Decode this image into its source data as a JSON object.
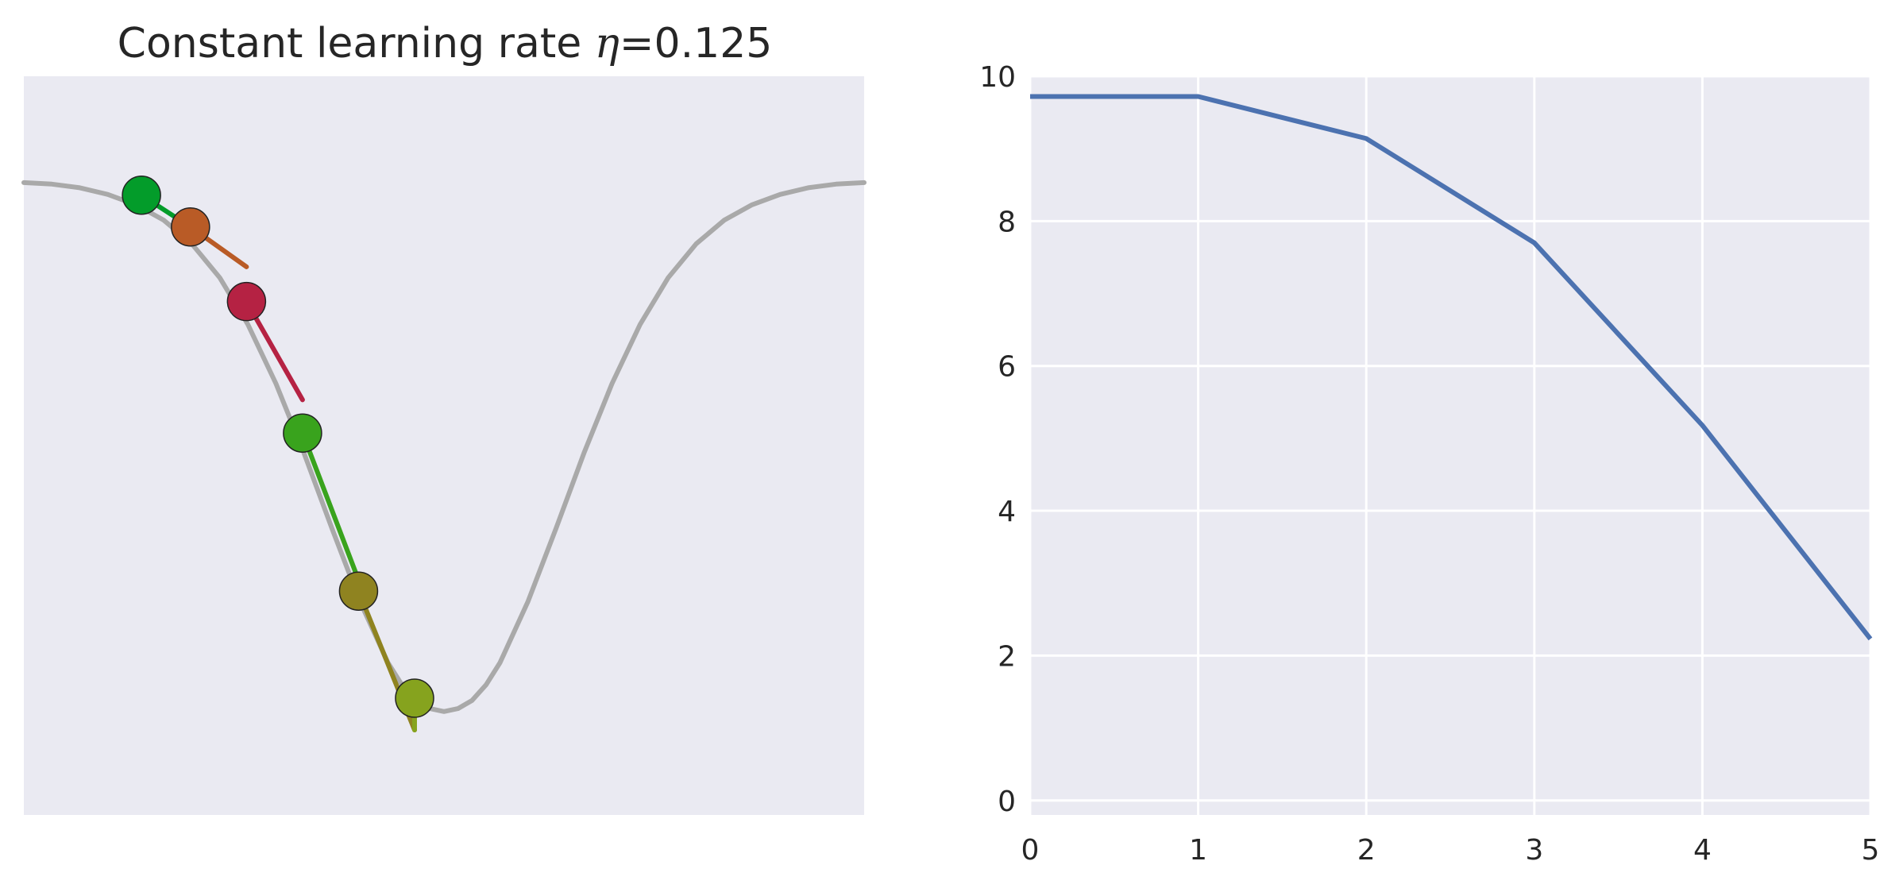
{
  "chart_data": [
    {
      "type": "line",
      "title": {
        "prefix": "Constant learning rate ",
        "symbol": "η",
        "suffix": "=0.125"
      },
      "xlabel": "",
      "ylabel": "",
      "axes_visible": false,
      "grid": false,
      "background": "#eaeaf2",
      "xlim": [
        -3,
        3
      ],
      "ylim": [
        0.0,
        10.0
      ],
      "curve": {
        "color": "#a9a9a9",
        "points": [
          [
            -3.0,
            8.56
          ],
          [
            -2.8,
            8.54
          ],
          [
            -2.6,
            8.49
          ],
          [
            -2.4,
            8.4
          ],
          [
            -2.2,
            8.26
          ],
          [
            -2.0,
            8.05
          ],
          [
            -1.8,
            7.73
          ],
          [
            -1.6,
            7.27
          ],
          [
            -1.4,
            6.64
          ],
          [
            -1.2,
            5.84
          ],
          [
            -1.0,
            4.9
          ],
          [
            -0.8,
            3.88
          ],
          [
            -0.6,
            2.89
          ],
          [
            -0.4,
            2.06
          ],
          [
            -0.3,
            1.76
          ],
          [
            -0.2,
            1.55
          ],
          [
            -0.1,
            1.44
          ],
          [
            0.0,
            1.4
          ],
          [
            0.1,
            1.44
          ],
          [
            0.2,
            1.55
          ],
          [
            0.3,
            1.76
          ],
          [
            0.4,
            2.06
          ],
          [
            0.6,
            2.89
          ],
          [
            0.8,
            3.88
          ],
          [
            1.0,
            4.9
          ],
          [
            1.2,
            5.84
          ],
          [
            1.4,
            6.64
          ],
          [
            1.6,
            7.27
          ],
          [
            1.8,
            7.73
          ],
          [
            2.0,
            8.05
          ],
          [
            2.2,
            8.26
          ],
          [
            2.4,
            8.4
          ],
          [
            2.6,
            8.49
          ],
          [
            2.8,
            8.54
          ],
          [
            3.0,
            8.56
          ]
        ]
      },
      "iterates": [
        {
          "x": -2.16,
          "y": 8.39,
          "color": "#039c2a",
          "tangent_end": [
            -1.81,
            7.96
          ]
        },
        {
          "x": -1.81,
          "y": 7.96,
          "color": "#b95b26",
          "tangent_end": [
            -1.41,
            7.42
          ]
        },
        {
          "x": -1.41,
          "y": 6.95,
          "color": "#b52243",
          "tangent_end": [
            -1.01,
            5.62
          ]
        },
        {
          "x": -1.01,
          "y": 5.17,
          "color": "#39a31d",
          "tangent_end": [
            -0.61,
            3.18
          ]
        },
        {
          "x": -0.61,
          "y": 3.03,
          "color": "#8f8320",
          "tangent_end": [
            -0.21,
            1.15
          ]
        },
        {
          "x": -0.21,
          "y": 1.58,
          "color": "#86a31e",
          "tangent_end": null
        }
      ]
    },
    {
      "type": "line",
      "title": "",
      "xlabel": "",
      "ylabel": "",
      "grid": true,
      "background": "#eaeaf2",
      "xlim": [
        0,
        5
      ],
      "ylim": [
        -0.2,
        10.0
      ],
      "xticks": [
        0,
        1,
        2,
        3,
        4,
        5
      ],
      "yticks": [
        0,
        2,
        4,
        6,
        8,
        10
      ],
      "series": [
        {
          "color": "#4c72b0",
          "x": [
            0,
            1,
            2,
            3,
            4,
            5
          ],
          "values": [
            9.72,
            9.72,
            9.14,
            7.7,
            5.18,
            2.23
          ]
        }
      ]
    }
  ]
}
